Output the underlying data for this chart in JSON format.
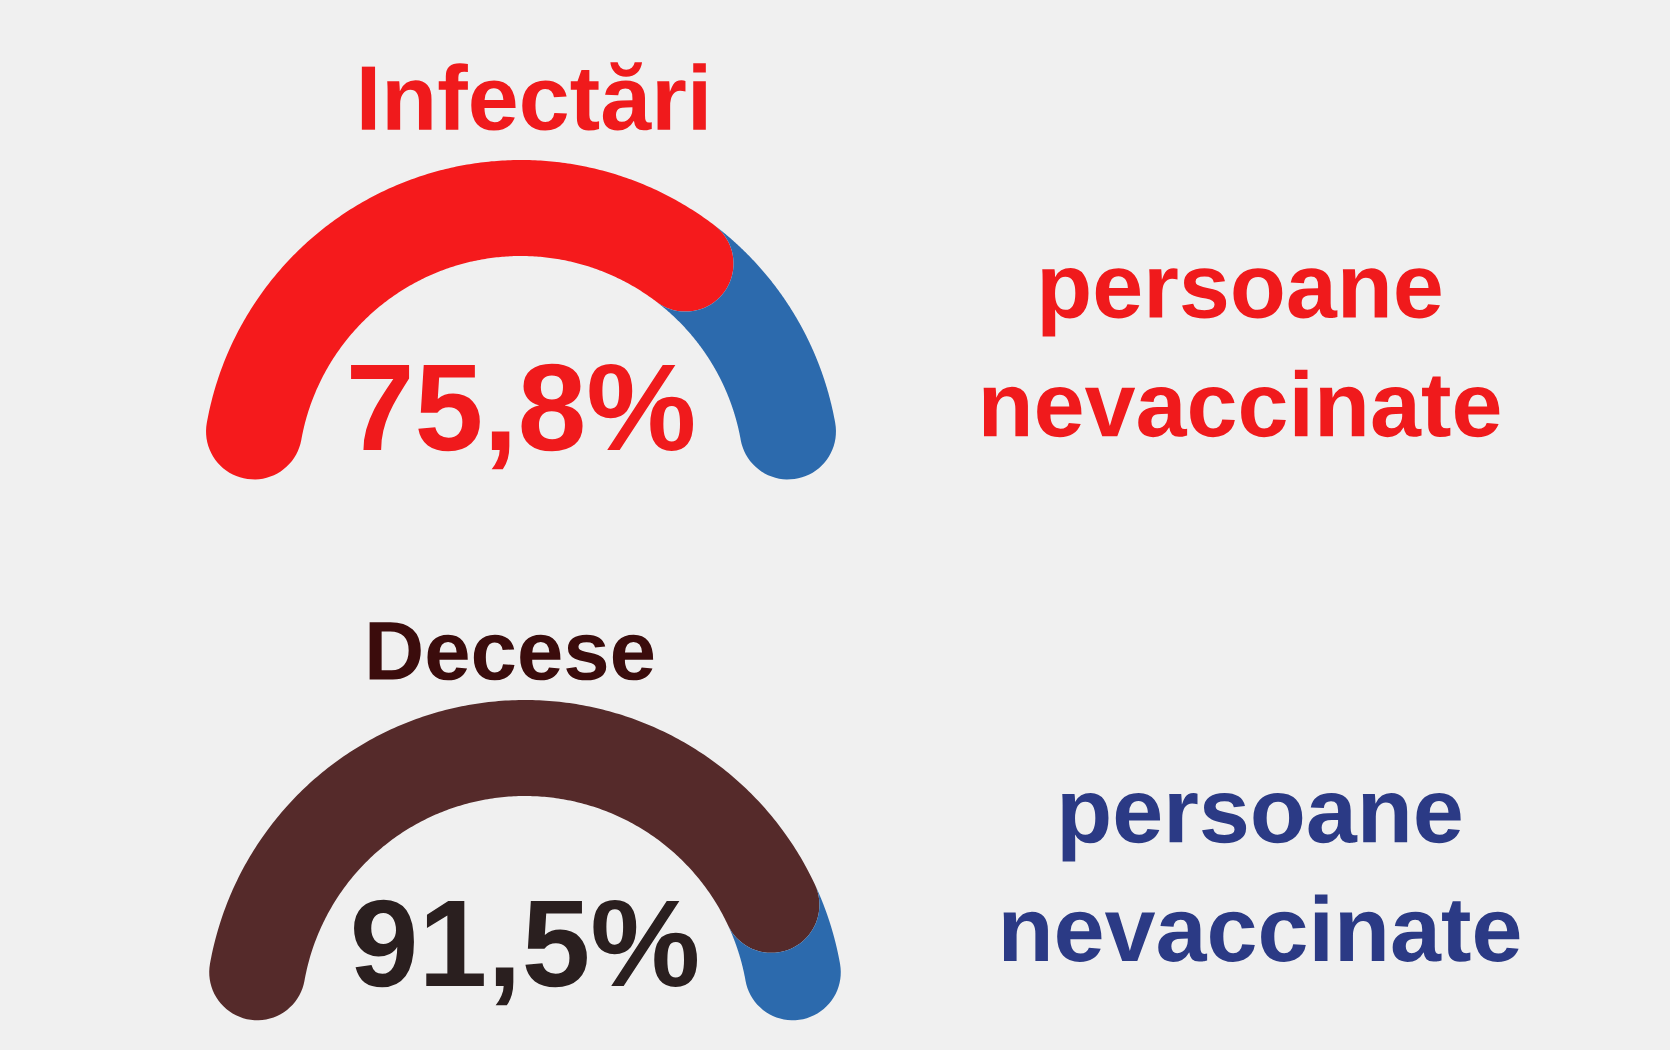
{
  "chart_data": [
    {
      "type": "donut",
      "title": "Infectări",
      "categories": [
        null,
        null
      ],
      "values": [
        75.8,
        24.2
      ],
      "colors": [
        "#f51a1c",
        "#2c6aad"
      ],
      "value_labels": [
        "75,8%",
        null
      ],
      "annotations": [
        "persoane nevaccinate"
      ]
    },
    {
      "type": "donut",
      "title": "Decese",
      "categories": [
        null,
        null
      ],
      "values": [
        91.5,
        8.5
      ],
      "colors": [
        "#552a2a",
        "#2c6aad"
      ],
      "value_labels": [
        "91,5%",
        null
      ],
      "annotations": [
        "persoane nevaccinate"
      ]
    }
  ]
}
